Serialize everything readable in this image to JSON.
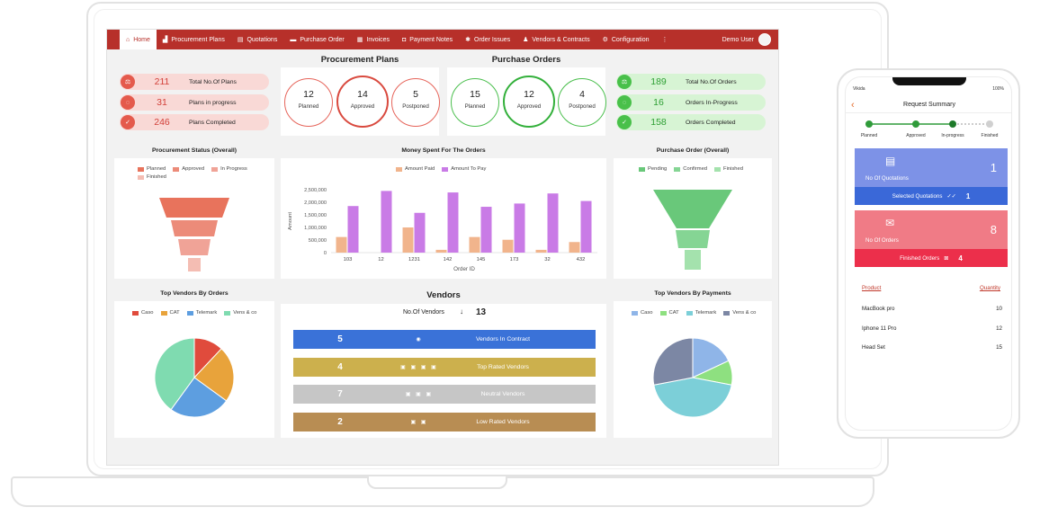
{
  "nav": {
    "items": [
      {
        "label": "Home",
        "icon": "home-icon",
        "active": true
      },
      {
        "label": "Procurement Plans",
        "icon": "chart-icon"
      },
      {
        "label": "Quotations",
        "icon": "quotation-icon"
      },
      {
        "label": "Purchase Order",
        "icon": "truck-icon"
      },
      {
        "label": "Invoices",
        "icon": "invoice-icon"
      },
      {
        "label": "Payment Notes",
        "icon": "payment-icon"
      },
      {
        "label": "Order Issues",
        "icon": "issues-icon"
      },
      {
        "label": "Vendors & Contracts",
        "icon": "vendor-icon"
      },
      {
        "label": "Configuration",
        "icon": "gear-icon"
      }
    ],
    "more": "⋮",
    "user": "Demo User"
  },
  "plans_stats": [
    {
      "value": "211",
      "label": "Total No.Of Plans",
      "icon": "plans-icon"
    },
    {
      "value": "31",
      "label": "Plans in progress",
      "icon": "progress-icon"
    },
    {
      "value": "246",
      "label": "Plans Completed",
      "icon": "check-icon"
    }
  ],
  "procurement": {
    "title": "Procurement Plans",
    "rings": [
      {
        "value": "12",
        "label": "Planned"
      },
      {
        "value": "14",
        "label": "Approved"
      },
      {
        "value": "5",
        "label": "Postponed"
      }
    ]
  },
  "purchase": {
    "title": "Purchase Orders",
    "rings": [
      {
        "value": "15",
        "label": "Planned"
      },
      {
        "value": "12",
        "label": "Approved"
      },
      {
        "value": "4",
        "label": "Postponed"
      }
    ]
  },
  "orders_stats": [
    {
      "value": "189",
      "label": "Total No.Of Orders",
      "icon": "orders-icon"
    },
    {
      "value": "16",
      "label": "Orders In-Progress",
      "icon": "progress-icon"
    },
    {
      "value": "158",
      "label": "Orders Completed",
      "icon": "check-icon"
    }
  ],
  "colors": {
    "nav": "#b7302a",
    "red_pill": "#f9d9d6",
    "green_pill": "#d7f4d4",
    "amount_paid": "#f1b48c",
    "amount_to_pay": "#c97be6"
  },
  "chart_data": [
    {
      "type": "funnel",
      "title": "Procurement Status (Overall)",
      "legend": [
        {
          "label": "Planned",
          "color": "#e8735c"
        },
        {
          "label": "Approved",
          "color": "#ec8b79"
        },
        {
          "label": "In Progress",
          "color": "#f0a397"
        },
        {
          "label": "Finished",
          "color": "#f4bdb3"
        }
      ]
    },
    {
      "type": "bar",
      "title": "Money Spent For The Orders",
      "xlabel": "Order ID",
      "ylabel": "Amount",
      "ylim": [
        0,
        2500000
      ],
      "yticks": [
        "0",
        "500,000",
        "1,000,000",
        "1,500,000",
        "2,000,000",
        "2,500,000"
      ],
      "categories": [
        "103",
        "12",
        "1231",
        "142",
        "145",
        "173",
        "32",
        "432"
      ],
      "series": [
        {
          "name": "Amount Paid",
          "color": "#f1b48c",
          "values": [
            620000,
            0,
            1000000,
            110000,
            620000,
            510000,
            110000,
            420000
          ]
        },
        {
          "name": "Amount To Pay",
          "color": "#c97be6",
          "values": [
            1850000,
            2450000,
            1580000,
            2390000,
            1820000,
            1950000,
            2350000,
            2050000
          ]
        }
      ]
    },
    {
      "type": "funnel",
      "title": "Purchase Order (Overall)",
      "legend": [
        {
          "label": "Pending",
          "color": "#69c87a"
        },
        {
          "label": "Confirmed",
          "color": "#85d594"
        },
        {
          "label": "Finished",
          "color": "#a4e2ad"
        }
      ]
    },
    {
      "type": "pie",
      "title": "Top Vendors By Orders",
      "slices": [
        {
          "label": "Caso",
          "value": 12,
          "color": "#e04b3c"
        },
        {
          "label": "CAT",
          "value": 23,
          "color": "#e8a33b"
        },
        {
          "label": "Telemark",
          "value": 25,
          "color": "#5d9ee0"
        },
        {
          "label": "Vens & co",
          "value": 40,
          "color": "#7fdbb0"
        }
      ]
    },
    {
      "type": "pie",
      "title": "Top Vendors By Payments",
      "slices": [
        {
          "label": "Caso",
          "value": 18,
          "color": "#8fb5e8"
        },
        {
          "label": "CAT",
          "value": 10,
          "color": "#8ee080"
        },
        {
          "label": "Telemark",
          "value": 44,
          "color": "#7ccfd8"
        },
        {
          "label": "Vens & co",
          "value": 28,
          "color": "#7c87a4"
        }
      ]
    }
  ],
  "vendors": {
    "title": "Vendors",
    "count_label": "No.Of Vendors",
    "count": "13",
    "bars": [
      {
        "value": "5",
        "label": "Vendors In Contract",
        "icons": "◉",
        "color": "#3a72d8"
      },
      {
        "value": "4",
        "label": "Top Rated Vendors",
        "icons": "▣ ▣ ▣ ▣",
        "color": "#ccb04d"
      },
      {
        "value": "7",
        "label": "Neutral Vendors",
        "icons": "▣ ▣ ▣",
        "color": "#c6c6c6"
      },
      {
        "value": "2",
        "label": "Low Rated Vendors",
        "icons": "▣ ▣",
        "color": "#b88d53"
      }
    ]
  },
  "phone": {
    "carrier": "Vikida",
    "battery": "100%",
    "title": "Request Summary",
    "steps": [
      "Planned",
      "Approved",
      "In-progress",
      "Finished"
    ],
    "quotations": {
      "label": "No Of Quotations",
      "value": "1",
      "bar_label": "Selected Quotations",
      "bar_value": "1"
    },
    "orders": {
      "label": "No Of Orders",
      "value": "8",
      "bar_label": "Finished Orders",
      "bar_value": "4"
    },
    "table_headers": {
      "product": "Product",
      "quantity": "Quantity"
    },
    "rows": [
      {
        "product": "MacBook pro",
        "quantity": "10"
      },
      {
        "product": "Iphone 11 Pro",
        "quantity": "12"
      },
      {
        "product": "Head Set",
        "quantity": "15"
      }
    ]
  }
}
